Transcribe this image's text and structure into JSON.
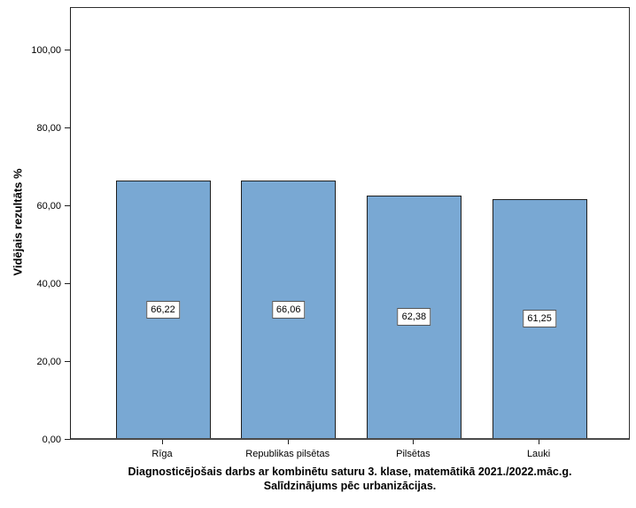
{
  "chart_data": {
    "type": "bar",
    "title": "",
    "caption": {
      "line1": "Diagnosticējošais darbs ar kombinētu saturu 3. klase, matemātikā 2021./2022.māc.g.",
      "line2": "Salīdzinājums pēc urbanizācijas."
    },
    "ylabel": "Vidējais rezultāts %",
    "xlabel": "",
    "categories": [
      "Rīga",
      "Republikas pilsētas",
      "Pilsētas",
      "Lauki"
    ],
    "values": [
      66.22,
      66.06,
      62.38,
      61.25
    ],
    "value_labels": [
      "66,22",
      "66,06",
      "62,38",
      "61,25"
    ],
    "yticks": {
      "values": [
        0,
        20,
        40,
        60,
        80,
        100
      ],
      "labels": [
        "0,00",
        "20,00",
        "40,00",
        "60,00",
        "80,00",
        "100,00"
      ]
    },
    "ylim": [
      0,
      111
    ],
    "grid": false,
    "legend": "none",
    "colors": {
      "bar_fill": "#79A8D3",
      "bar_border": "#1f1f1f",
      "axis": "#1f1f1f",
      "label_box_bg": "#ffffff",
      "label_box_border": "#555555",
      "text": "#000000"
    }
  }
}
